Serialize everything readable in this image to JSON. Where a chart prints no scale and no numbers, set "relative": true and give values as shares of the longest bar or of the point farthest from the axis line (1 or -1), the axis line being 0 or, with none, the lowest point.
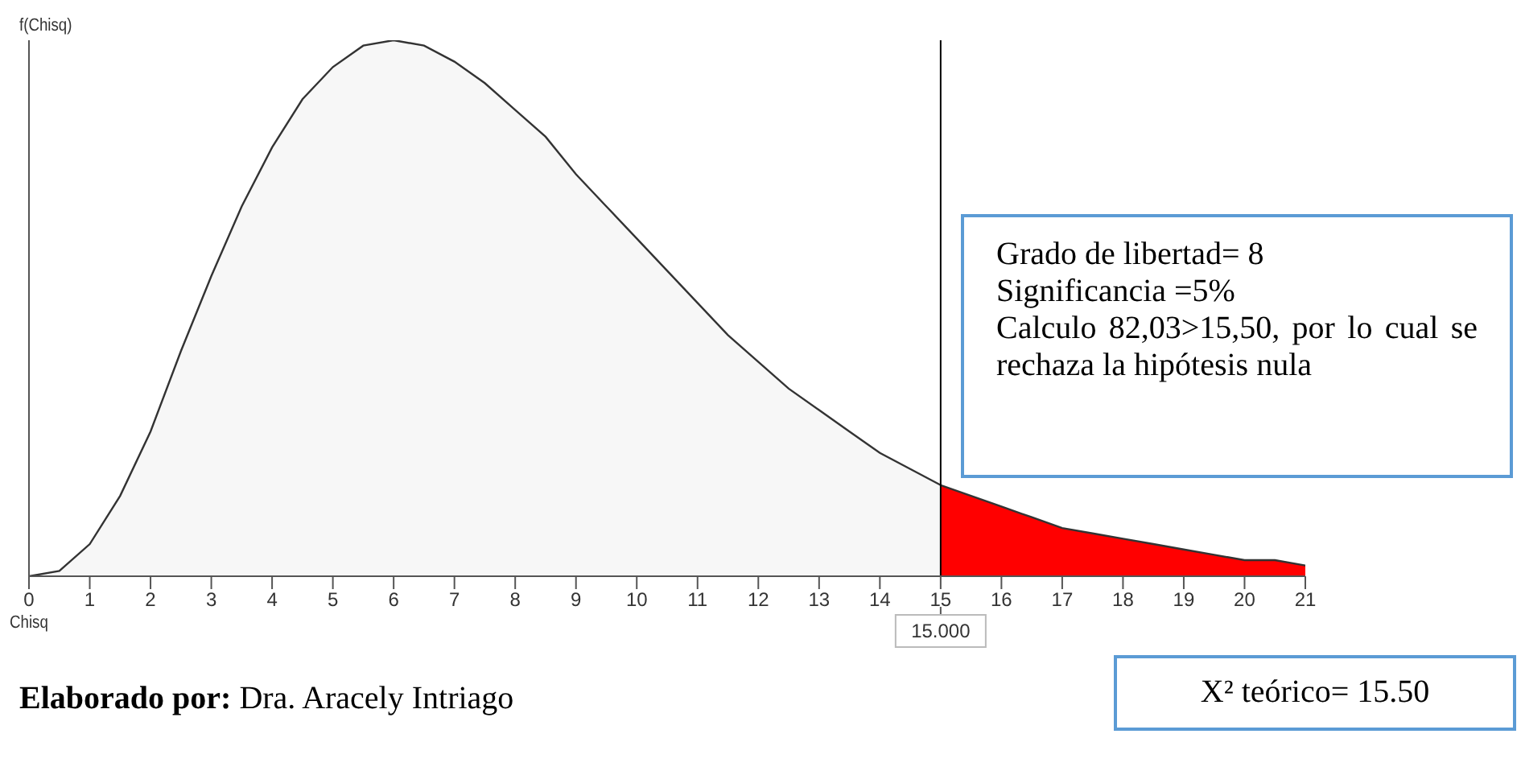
{
  "chart_data": {
    "type": "area",
    "relative": true,
    "xlabel": "Chisq",
    "ylabel": "f(Chisq)",
    "xlim": [
      0,
      21
    ],
    "xticks": [
      0,
      1,
      2,
      3,
      4,
      5,
      6,
      7,
      8,
      9,
      10,
      11,
      12,
      13,
      14,
      15,
      16,
      17,
      18,
      19,
      20,
      21
    ],
    "series": [
      {
        "color": "#f7f7f7",
        "x": [
          0,
          0.5,
          1,
          1.5,
          2,
          2.5,
          3,
          3.5,
          4,
          4.5,
          5,
          5.5,
          6,
          6.5,
          7,
          7.5,
          8,
          8.5,
          9,
          9.5,
          10,
          10.5,
          11,
          11.5,
          12,
          12.5,
          13,
          13.5,
          14,
          14.5,
          15
        ],
        "values": [
          0,
          0.01,
          0.06,
          0.15,
          0.27,
          0.42,
          0.56,
          0.69,
          0.8,
          0.89,
          0.95,
          0.99,
          1,
          0.99,
          0.96,
          0.92,
          0.87,
          0.82,
          0.75,
          0.69,
          0.63,
          0.57,
          0.51,
          0.45,
          0.4,
          0.35,
          0.31,
          0.27,
          0.23,
          0.2,
          0.17
        ]
      },
      {
        "color": "#ff0000",
        "x": [
          15,
          15.5,
          16,
          16.5,
          17,
          17.5,
          18,
          18.5,
          19,
          19.5,
          20,
          20.5,
          21
        ],
        "values": [
          0.17,
          0.15,
          0.13,
          0.11,
          0.09,
          0.08,
          0.07,
          0.06,
          0.05,
          0.04,
          0.03,
          0.03,
          0.02
        ]
      }
    ],
    "ref_lines": [
      {
        "axis": "x",
        "value": 15,
        "label": "15.000",
        "color": "#000000"
      }
    ],
    "annotations": [
      "Grado de libertad= 8\nSignificancia =5%\nCalculo 82,03>15,50, por lo cual se rechaza la hipótesis nula",
      "Elaborado por: Dra. Aracely Intriago",
      "X² teórico= 15.50"
    ],
    "grid": false
  }
}
